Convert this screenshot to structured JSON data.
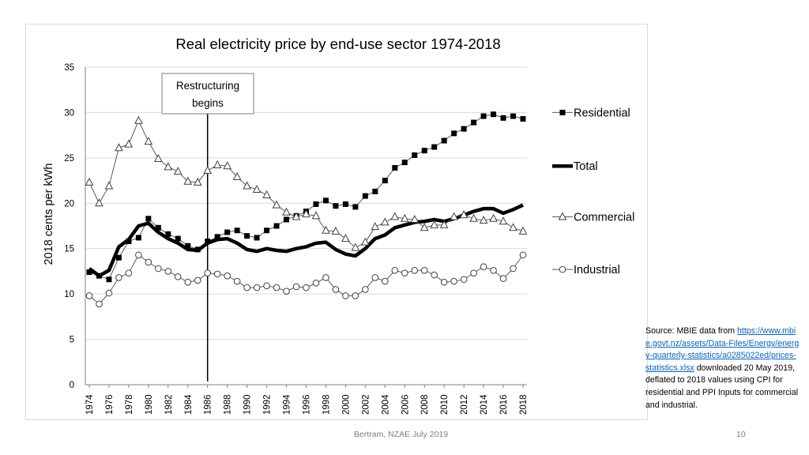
{
  "chart_data": {
    "type": "line",
    "title": "Real electricity price by end-use sector 1974-2018",
    "xlabel": "",
    "ylabel": "2018 cents per kWh",
    "ylim": [
      0,
      35
    ],
    "yticks": [
      0,
      5,
      10,
      15,
      20,
      25,
      30,
      35
    ],
    "xticks": [
      1974,
      1976,
      1978,
      1980,
      1982,
      1984,
      1986,
      1988,
      1990,
      1992,
      1994,
      1996,
      1998,
      2000,
      2002,
      2004,
      2006,
      2008,
      2010,
      2012,
      2014,
      2016,
      2018
    ],
    "grid": "horizontal",
    "x": [
      1974,
      1975,
      1976,
      1977,
      1978,
      1979,
      1980,
      1981,
      1982,
      1983,
      1984,
      1985,
      1986,
      1987,
      1988,
      1989,
      1990,
      1991,
      1992,
      1993,
      1994,
      1995,
      1996,
      1997,
      1998,
      1999,
      2000,
      2001,
      2002,
      2003,
      2004,
      2005,
      2006,
      2007,
      2008,
      2009,
      2010,
      2011,
      2012,
      2013,
      2014,
      2015,
      2016,
      2017,
      2018
    ],
    "series": [
      {
        "name": "Residential",
        "marker": "square",
        "line": "thin",
        "legend_y": 30,
        "values": [
          12.4,
          12.0,
          11.6,
          14.0,
          15.8,
          16.2,
          18.3,
          17.3,
          16.6,
          16.1,
          15.3,
          14.9,
          15.8,
          16.3,
          16.8,
          17.0,
          16.4,
          16.2,
          17.0,
          17.5,
          18.2,
          18.6,
          19.1,
          19.9,
          20.3,
          19.7,
          19.9,
          19.6,
          20.8,
          21.3,
          22.5,
          23.9,
          24.5,
          25.3,
          25.8,
          26.2,
          26.9,
          27.7,
          28.2,
          28.9,
          29.6,
          29.8,
          29.4,
          29.6,
          29.3
        ]
      },
      {
        "name": "Total",
        "marker": "none",
        "line": "thick",
        "legend_y": 24.1,
        "values": [
          12.8,
          12.0,
          12.6,
          15.2,
          16.0,
          17.5,
          17.8,
          16.8,
          16.1,
          15.6,
          14.9,
          14.8,
          15.6,
          16.0,
          16.1,
          15.6,
          14.9,
          14.7,
          15.0,
          14.8,
          14.7,
          15.0,
          15.2,
          15.6,
          15.7,
          14.9,
          14.4,
          14.2,
          15.0,
          16.1,
          16.5,
          17.3,
          17.6,
          17.9,
          18.0,
          18.2,
          18.0,
          18.3,
          18.7,
          19.1,
          19.4,
          19.4,
          18.9,
          19.3,
          19.8
        ]
      },
      {
        "name": "Commercial",
        "marker": "triangle",
        "line": "thin",
        "legend_y": 18.5,
        "values": [
          22.3,
          20.0,
          21.9,
          26.1,
          26.5,
          29.1,
          26.8,
          24.9,
          24.0,
          23.5,
          22.4,
          22.3,
          23.6,
          24.2,
          24.1,
          22.9,
          21.9,
          21.5,
          20.9,
          19.8,
          19.0,
          18.5,
          18.8,
          18.6,
          17.0,
          16.9,
          16.1,
          15.1,
          15.7,
          17.4,
          17.9,
          18.5,
          18.3,
          18.2,
          17.3,
          17.6,
          17.6,
          18.5,
          18.7,
          18.3,
          18.1,
          18.3,
          18.0,
          17.3,
          16.9
        ]
      },
      {
        "name": "Industrial",
        "marker": "circle",
        "line": "thin",
        "legend_y": 12.7,
        "values": [
          9.8,
          8.9,
          10.1,
          11.8,
          12.3,
          14.3,
          13.5,
          12.8,
          12.5,
          11.9,
          11.3,
          11.5,
          12.3,
          12.2,
          12.0,
          11.4,
          10.7,
          10.7,
          10.9,
          10.7,
          10.3,
          10.8,
          10.7,
          11.2,
          11.8,
          10.5,
          9.8,
          9.8,
          10.5,
          11.8,
          11.4,
          12.6,
          12.3,
          12.6,
          12.6,
          12.1,
          11.3,
          11.4,
          11.6,
          12.3,
          13.0,
          12.6,
          11.7,
          12.8,
          14.3
        ]
      }
    ],
    "annotations": [
      {
        "text_lines": [
          "Restructuring",
          "begins"
        ],
        "x": 1986
      }
    ]
  },
  "source": {
    "prefix": "Source: MBIE data from ",
    "url": "https://www.mbie.govt.nz/assets/Data-Files/Energy/energy-quarterly-statistics/a0285022ed/prices-statistics.xlsx",
    "suffix": " downloaded 20 May 2019, deflated to 2018 values using CPI for residential and PPI Inputs for commercial and industrial."
  },
  "footer": {
    "text": "Bertram, NZAE July 2019",
    "page_number": "10"
  }
}
